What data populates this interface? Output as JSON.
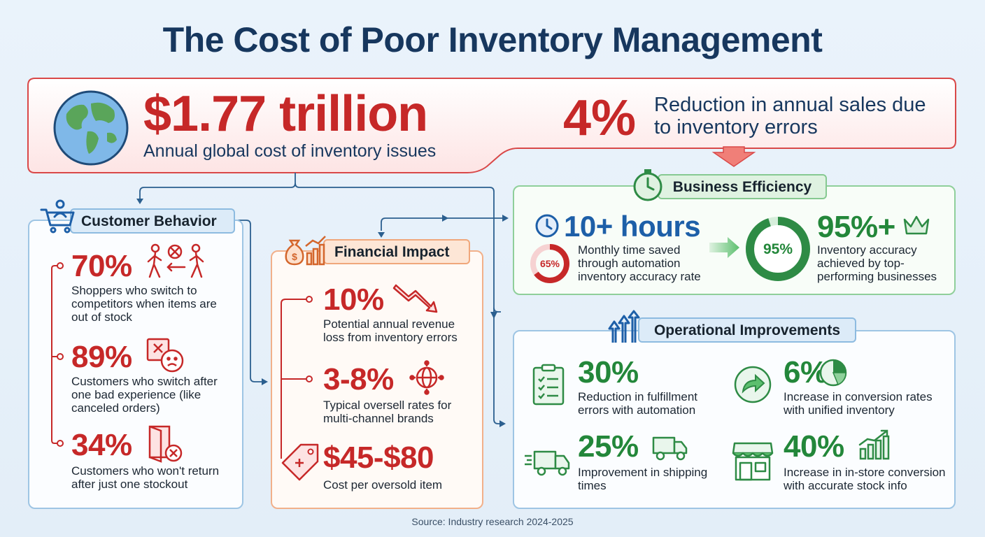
{
  "title": "The Cost of Poor Inventory Management",
  "hero": {
    "amount": "$1.77 trillion",
    "amount_label": "Annual global cost of inventory issues",
    "pct": "4%",
    "pct_label": "Reduction in annual sales due to inventory errors"
  },
  "customer": {
    "heading": "Customer Behavior",
    "items": [
      {
        "value": "70%",
        "text": "Shoppers who switch to competitors when items are out of stock"
      },
      {
        "value": "89%",
        "text": "Customers who switch after one bad experience (like canceled orders)"
      },
      {
        "value": "34%",
        "text": "Customers who won't return after just one stockout"
      }
    ]
  },
  "financial": {
    "heading": "Financial Impact",
    "items": [
      {
        "value": "10%",
        "text": "Potential annual revenue loss from inventory errors"
      },
      {
        "value": "3-8%",
        "text": "Typical oversell rates for multi-channel brands"
      },
      {
        "value": "$45-$80",
        "text": "Cost per oversold item"
      }
    ]
  },
  "efficiency": {
    "heading": "Business Efficiency",
    "hours_value": "10+ hours",
    "hours_text": "Monthly time saved through automation inventory accuracy rate",
    "donut_small_label": "65%",
    "donut_small_fraction": 0.65,
    "donut_big_label": "95%",
    "donut_big_fraction": 0.95,
    "accuracy_value": "95%+",
    "accuracy_text": "Inventory accuracy achieved by top-performing businesses"
  },
  "operational": {
    "heading": "Operational Improvements",
    "items": [
      {
        "value": "30%",
        "text": "Reduction in fulfillment errors with automation"
      },
      {
        "value": "6%",
        "text": "Increase in conversion rates with unified inventory"
      },
      {
        "value": "25%",
        "text": "Improvement in shipping times"
      },
      {
        "value": "40%",
        "text": "Increase in in-store conversion with accurate stock info"
      }
    ]
  },
  "source": "Source: Industry research 2024-2025",
  "colors": {
    "red": "#c62828",
    "green": "#23873a",
    "navy": "#17375e",
    "blue": "#1d5fa8",
    "orange": "#e07a3f"
  },
  "icons": [
    "globe-icon",
    "cart-icon",
    "walking-people-icon",
    "sad-face-box-icon",
    "exit-door-icon",
    "money-bag-chart-icon",
    "down-trend-arrow-icon",
    "target-globe-icon",
    "price-tag-icon",
    "stopwatch-icon",
    "clock-icon",
    "crown-icon",
    "arrow-right-icon",
    "up-arrows-icon",
    "clipboard-checklist-icon",
    "refresh-arrow-icon",
    "pie-chart-icon",
    "delivery-truck-icon",
    "store-front-icon",
    "bar-growth-icon"
  ]
}
